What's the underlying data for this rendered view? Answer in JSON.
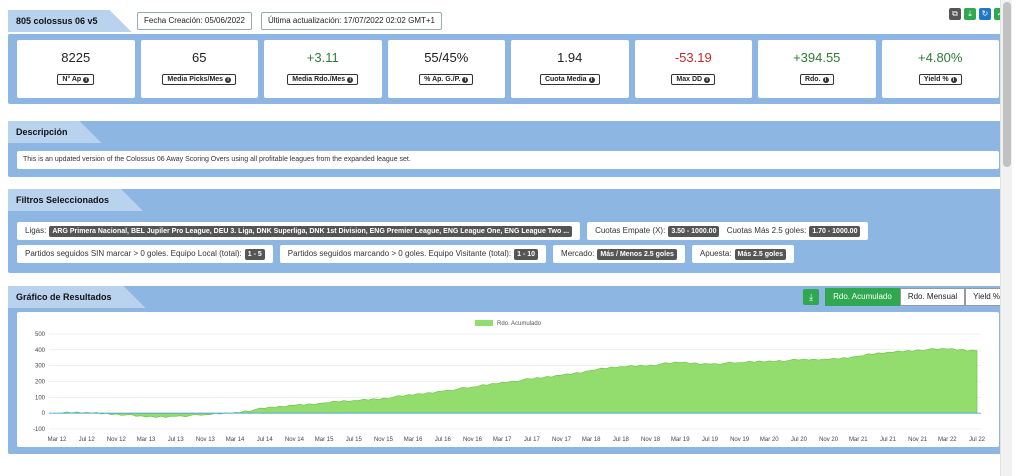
{
  "header": {
    "title": "805 colossus 06 v5",
    "created": "Fecha Creación: 05/06/2022",
    "updated": "Última actualización: 17/07/2022 02:02 GMT+1",
    "tools": [
      {
        "icon": "copy-icon",
        "color": "#555555",
        "glyph": "⧉"
      },
      {
        "icon": "download-icon",
        "color": "#2fa84f",
        "glyph": "⤓"
      },
      {
        "icon": "refresh-icon",
        "color": "#1e78c8",
        "glyph": "↻"
      },
      {
        "icon": "check-icon",
        "color": "#2fa84f",
        "glyph": "✓"
      }
    ]
  },
  "stats": [
    {
      "value": "8225",
      "label": "N° Ap",
      "tone": "neu"
    },
    {
      "value": "65",
      "label": "Media Picks/Mes",
      "tone": "neu"
    },
    {
      "value": "+3.11",
      "label": "Media Rdo./Mes",
      "tone": "pos"
    },
    {
      "value": "55/45%",
      "label": "% Ap. G./P.",
      "tone": "neu"
    },
    {
      "value": "1.94",
      "label": "Cuota Media",
      "tone": "neu"
    },
    {
      "value": "-53.19",
      "label": "Max DD",
      "tone": "neg"
    },
    {
      "value": "+394.55",
      "label": "Rdo.",
      "tone": "pos"
    },
    {
      "value": "+4.80%",
      "label": "Yield %",
      "tone": "pos"
    }
  ],
  "description": {
    "tab": "Descripción",
    "text": "This is an updated version of the Colossus 06 Away Scoring Overs using all profitable leagues from the expanded league set."
  },
  "filters": {
    "tab": "Filtros Seleccionados",
    "ligas_label": "Ligas:",
    "ligas_value": "ARG Primera Nacional, BEL Jupiler Pro League, DEU 3. Liga, DNK Superliga, DNK 1st Division, ENG Premier League, ENG League One, ENG League Two ...",
    "empate_label": "Cuotas Empate (X):",
    "empate_value": "3.50 - 1000.00",
    "mas25_label": "Cuotas Más 2.5 goles:",
    "mas25_value": "1.70 - 1000.00",
    "sin_marcar_label": "Partidos seguidos SIN marcar > 0 goles. Equipo Local (total):",
    "sin_marcar_value": "1 - 5",
    "marcando_label": "Partidos seguidos marcando > 0 goles. Equipo Visitante (total):",
    "marcando_value": "1 - 10",
    "mercado_label": "Mercado:",
    "mercado_value": "Más / Menos 2.5 goles",
    "apuesta_label": "Apuesta:",
    "apuesta_value": "Más 2.5 goles"
  },
  "chart_section": {
    "tab": "Gráfico de Resultados",
    "buttons": [
      "Rdo. Acumulado",
      "Rdo. Mensual",
      "Yield %"
    ],
    "active": 0
  },
  "chart_data": {
    "type": "area",
    "title": "",
    "xlabel": "",
    "ylabel": "",
    "ylim": [
      -100,
      500
    ],
    "yticks": [
      -100,
      0,
      100,
      200,
      300,
      400,
      500
    ],
    "legend_position": "top-center",
    "grid": true,
    "x_tick_labels": [
      "Mar 12",
      "Jul 12",
      "Nov 12",
      "Mar 13",
      "Jul 13",
      "Nov 13",
      "Mar 14",
      "Jul 14",
      "Nov 14",
      "Mar 15",
      "Jul 15",
      "Nov 15",
      "Mar 16",
      "Jul 16",
      "Nov 16",
      "Mar 17",
      "Jul 17",
      "Nov 17",
      "Mar 18",
      "Jul 18",
      "Nov 18",
      "Mar 19",
      "Jul 19",
      "Nov 19",
      "Mar 20",
      "Jul 20",
      "Nov 20",
      "Mar 21",
      "Jul 21",
      "Nov 21",
      "Mar 22",
      "Jul 22"
    ],
    "series": [
      {
        "name": "Rdo. Acumulado",
        "color": "#93dc6e",
        "x": [
          "Mar 12",
          "Jul 12",
          "Nov 12",
          "Mar 13",
          "Jul 13",
          "Nov 13",
          "Mar 14",
          "Jul 14",
          "Nov 14",
          "Mar 15",
          "Jul 15",
          "Nov 15",
          "Mar 16",
          "Jul 16",
          "Nov 16",
          "Mar 17",
          "Jul 17",
          "Nov 17",
          "Mar 18",
          "Jul 18",
          "Nov 18",
          "Mar 19",
          "Jul 19",
          "Nov 19",
          "Mar 20",
          "Jul 20",
          "Nov 20",
          "Mar 21",
          "Jul 21",
          "Nov 21",
          "Mar 22",
          "Jul 22"
        ],
        "values": [
          0,
          5,
          -5,
          -25,
          -20,
          -10,
          5,
          30,
          50,
          65,
          80,
          95,
          115,
          140,
          165,
          195,
          215,
          240,
          270,
          295,
          305,
          320,
          310,
          320,
          330,
          335,
          340,
          360,
          385,
          400,
          405,
          395
        ]
      }
    ]
  }
}
